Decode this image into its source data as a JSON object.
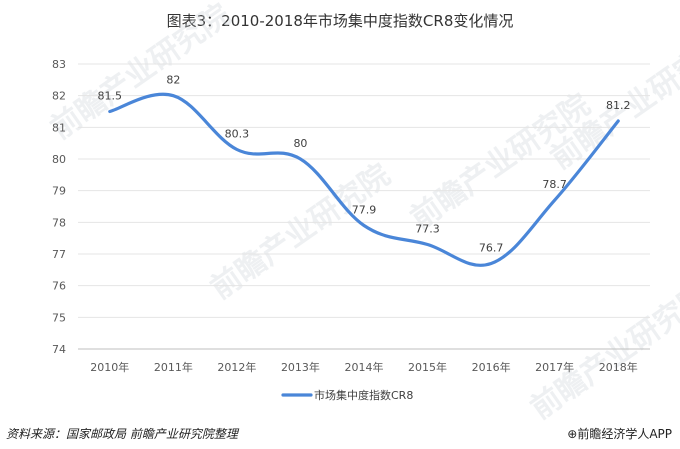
{
  "chart_data": {
    "type": "line",
    "title": "图表3：2010-2018年市场集中度指数CR8变化情况",
    "categories": [
      "2010年",
      "2011年",
      "2012年",
      "2013年",
      "2014年",
      "2015年",
      "2016年",
      "2017年",
      "2018年"
    ],
    "series": [
      {
        "name": "市场集中度指数CR8",
        "values": [
          81.5,
          82,
          80.3,
          80,
          77.9,
          77.3,
          76.7,
          78.7,
          81.2
        ]
      }
    ],
    "data_labels": [
      "81.5",
      "82",
      "80.3",
      "80",
      "77.9",
      "77.3",
      "76.7",
      "78.7",
      "81.2"
    ],
    "y_ticks": [
      "83",
      "82",
      "81",
      "80",
      "79",
      "78",
      "77",
      "76",
      "75",
      "74"
    ],
    "ylim": [
      74,
      83
    ],
    "xlabel": "",
    "ylabel": "",
    "grid": true,
    "legend_position": "bottom",
    "line_color": "#4a86d8"
  },
  "footer": {
    "source": "资料来源：国家邮政局 前瞻产业研究院整理",
    "brand": "前瞻经济学人APP"
  },
  "watermark": {
    "text": "前瞻产业研究院"
  }
}
